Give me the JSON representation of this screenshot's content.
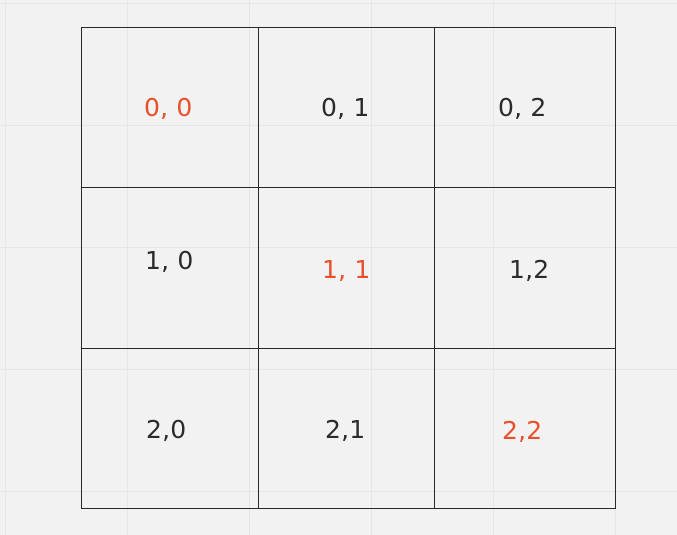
{
  "grid": {
    "rows": 3,
    "cols": 3,
    "cells": [
      {
        "row": 0,
        "col": 0,
        "label": "0, 0",
        "highlighted": true
      },
      {
        "row": 0,
        "col": 1,
        "label": "0, 1",
        "highlighted": false
      },
      {
        "row": 0,
        "col": 2,
        "label": "0, 2",
        "highlighted": false
      },
      {
        "row": 1,
        "col": 0,
        "label": "1, 0",
        "highlighted": false
      },
      {
        "row": 1,
        "col": 1,
        "label": "1, 1",
        "highlighted": true
      },
      {
        "row": 1,
        "col": 2,
        "label": "1,2",
        "highlighted": false
      },
      {
        "row": 2,
        "col": 0,
        "label": "2,0",
        "highlighted": false
      },
      {
        "row": 2,
        "col": 1,
        "label": "2,1",
        "highlighted": false
      },
      {
        "row": 2,
        "col": 2,
        "label": "2,2",
        "highlighted": true
      }
    ]
  },
  "colors": {
    "highlight": "#e8502c",
    "text": "#2b2b2b",
    "line": "#2a2a2a",
    "background": "#f2f2f2"
  }
}
